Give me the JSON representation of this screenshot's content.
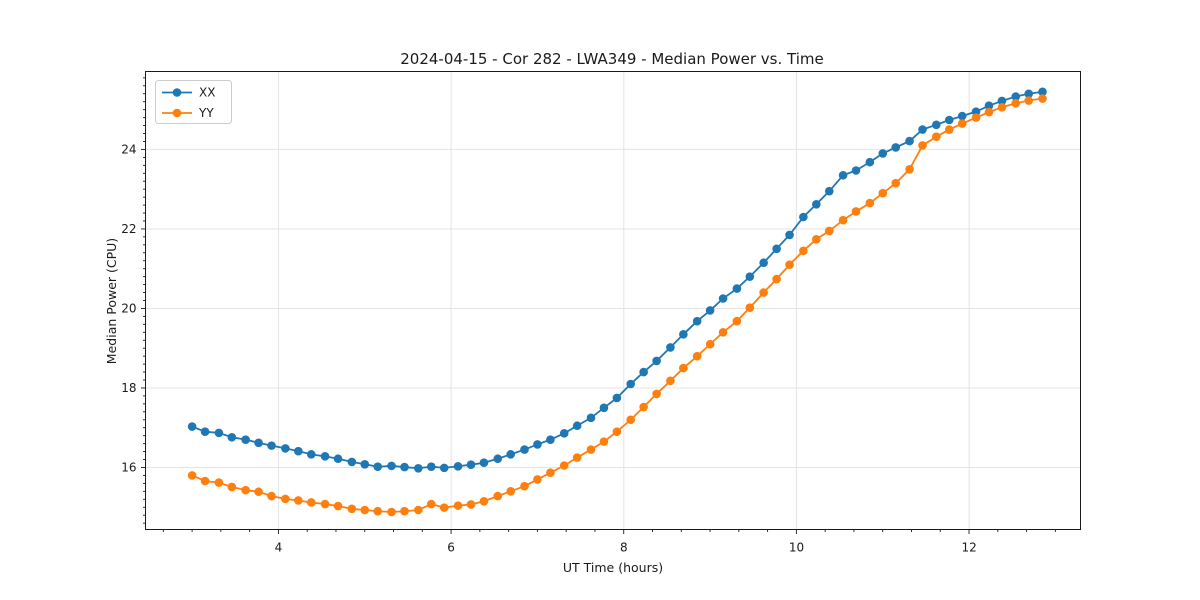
{
  "chart_data": {
    "type": "line",
    "title": "2024-04-15 - Cor 282 - LWA349 - Median Power vs. Time",
    "xlabel": "UT Time (hours)",
    "ylabel": "Median Power (CPU)",
    "xlim": [
      2.46,
      13.29
    ],
    "ylim": [
      14.44,
      25.96
    ],
    "xticks": [
      4,
      6,
      8,
      10,
      12
    ],
    "yticks": [
      16,
      18,
      20,
      22,
      24
    ],
    "x_minor_step": 0.3333,
    "y_minor_step": 0.2,
    "grid": true,
    "legend_position": "upper left",
    "marker": "circle",
    "x": [
      3.0,
      3.15,
      3.31,
      3.46,
      3.62,
      3.77,
      3.92,
      4.08,
      4.23,
      4.38,
      4.54,
      4.69,
      4.85,
      5.0,
      5.15,
      5.31,
      5.46,
      5.62,
      5.77,
      5.92,
      6.08,
      6.23,
      6.38,
      6.54,
      6.69,
      6.85,
      7.0,
      7.15,
      7.31,
      7.46,
      7.62,
      7.77,
      7.92,
      8.08,
      8.23,
      8.38,
      8.54,
      8.69,
      8.85,
      9.0,
      9.15,
      9.31,
      9.46,
      9.62,
      9.77,
      9.92,
      10.08,
      10.23,
      10.38,
      10.54,
      10.69,
      10.85,
      11.0,
      11.15,
      11.31,
      11.46,
      11.62,
      11.77,
      11.92,
      12.08,
      12.23,
      12.38,
      12.54,
      12.69,
      12.85
    ],
    "series": [
      {
        "name": "XX",
        "color": "#1f77b4",
        "values": [
          17.03,
          16.9,
          16.87,
          16.76,
          16.7,
          16.62,
          16.55,
          16.48,
          16.41,
          16.33,
          16.28,
          16.22,
          16.14,
          16.08,
          16.02,
          16.04,
          16.01,
          15.98,
          16.02,
          15.99,
          16.03,
          16.07,
          16.12,
          16.22,
          16.33,
          16.45,
          16.58,
          16.7,
          16.86,
          17.05,
          17.25,
          17.5,
          17.75,
          18.1,
          18.4,
          18.68,
          19.02,
          19.35,
          19.68,
          19.95,
          20.25,
          20.5,
          20.8,
          21.15,
          21.5,
          21.85,
          22.3,
          22.62,
          22.95,
          23.35,
          23.47,
          23.68,
          23.9,
          24.05,
          24.21,
          24.5,
          24.62,
          24.74,
          24.84,
          24.95,
          25.1,
          25.22,
          25.33,
          25.4,
          25.45
        ]
      },
      {
        "name": "YY",
        "color": "#ff7f0e",
        "values": [
          15.8,
          15.66,
          15.62,
          15.51,
          15.43,
          15.39,
          15.28,
          15.21,
          15.17,
          15.12,
          15.08,
          15.03,
          14.96,
          14.93,
          14.9,
          14.88,
          14.9,
          14.93,
          15.08,
          14.99,
          15.04,
          15.07,
          15.15,
          15.28,
          15.4,
          15.53,
          15.7,
          15.87,
          16.05,
          16.25,
          16.45,
          16.65,
          16.9,
          17.2,
          17.52,
          17.85,
          18.18,
          18.5,
          18.8,
          19.1,
          19.4,
          19.68,
          20.02,
          20.4,
          20.74,
          21.1,
          21.45,
          21.74,
          21.95,
          22.22,
          22.44,
          22.65,
          22.9,
          23.15,
          23.5,
          24.1,
          24.32,
          24.5,
          24.65,
          24.8,
          24.94,
          25.06,
          25.16,
          25.23,
          25.28
        ]
      }
    ]
  }
}
